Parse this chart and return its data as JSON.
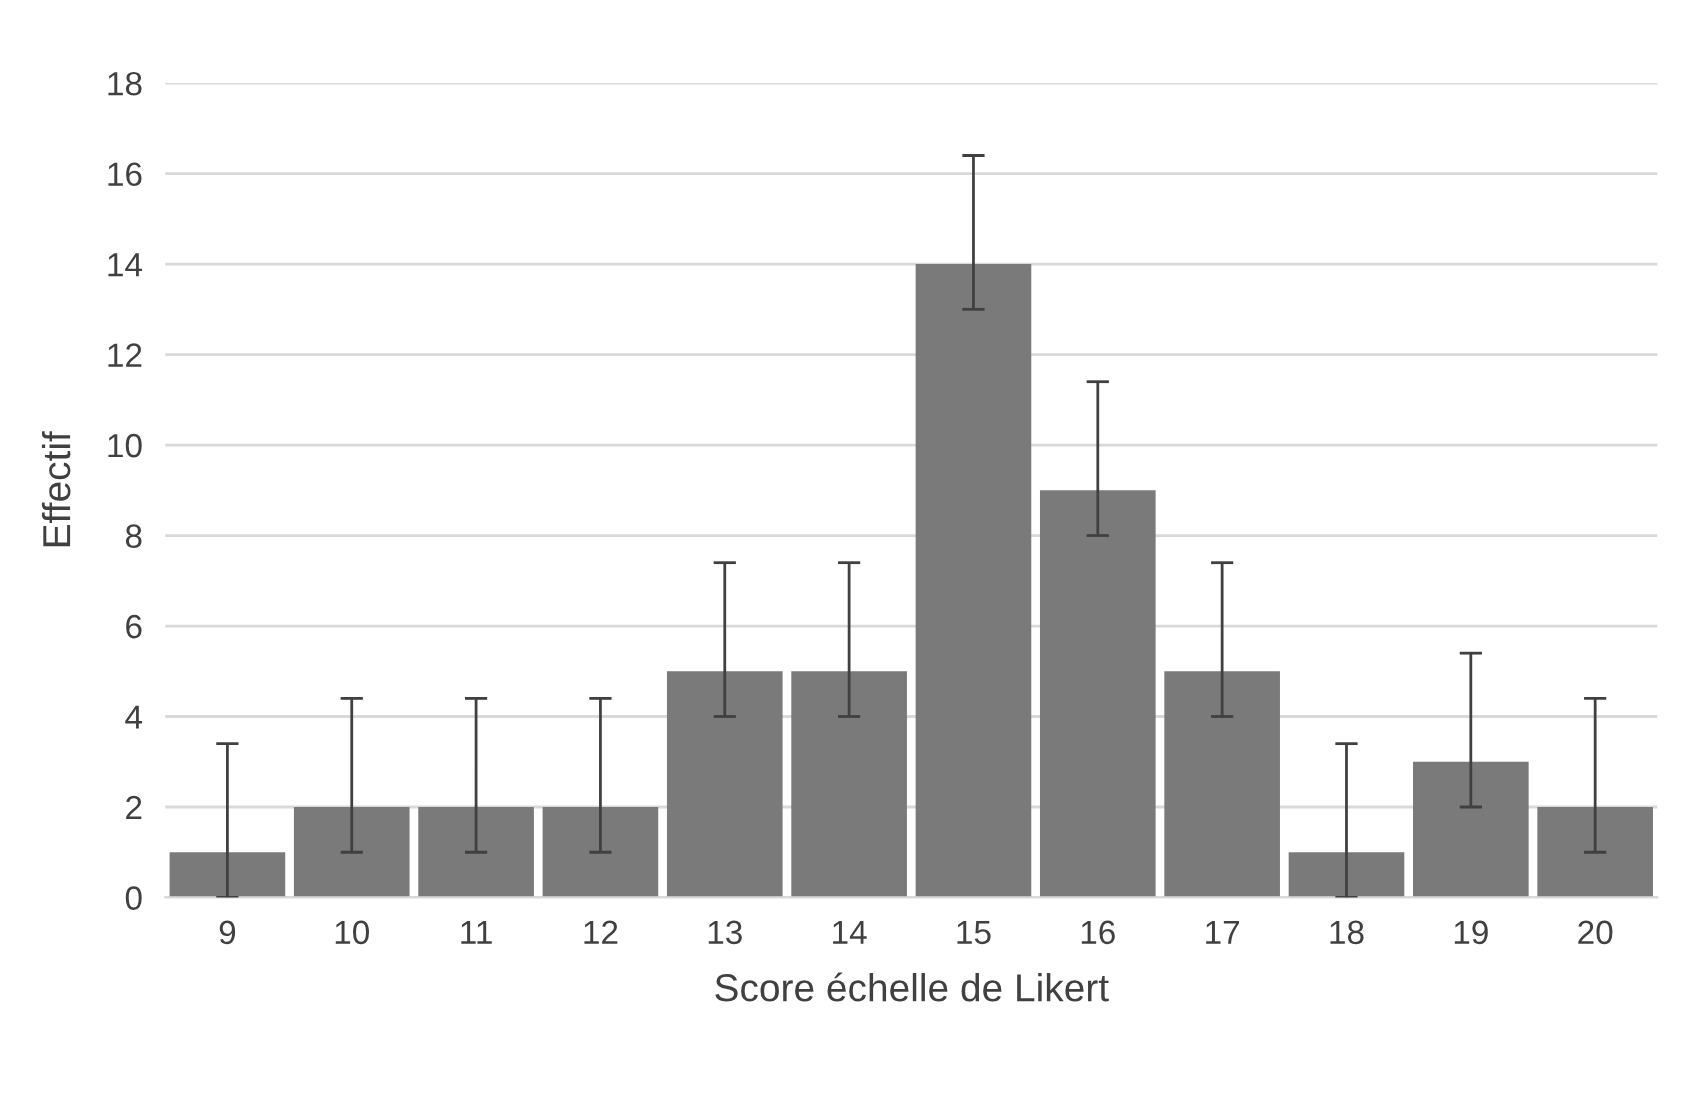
{
  "chart_data": {
    "type": "bar",
    "xlabel": "Score échelle de Likert",
    "ylabel": "Effectif",
    "categories": [
      "9",
      "10",
      "11",
      "12",
      "13",
      "14",
      "15",
      "16",
      "17",
      "18",
      "19",
      "20"
    ],
    "values": [
      1,
      2,
      2,
      2,
      5,
      5,
      14,
      9,
      5,
      1,
      3,
      2
    ],
    "errors": [
      [
        0,
        3.4
      ],
      [
        1,
        4.4
      ],
      [
        1,
        4.4
      ],
      [
        1,
        4.4
      ],
      [
        4,
        7.4
      ],
      [
        4,
        7.4
      ],
      [
        13,
        16.4
      ],
      [
        8,
        11.4
      ],
      [
        4,
        7.4
      ],
      [
        0,
        3.4
      ],
      [
        2,
        5.4
      ],
      [
        1,
        4.4
      ]
    ],
    "color": "#7a7a7a",
    "ylim": [
      0,
      18
    ],
    "yticks": [
      0,
      2,
      4,
      6,
      8,
      10,
      12,
      14,
      16,
      18
    ],
    "grid": "y",
    "legend": false
  }
}
